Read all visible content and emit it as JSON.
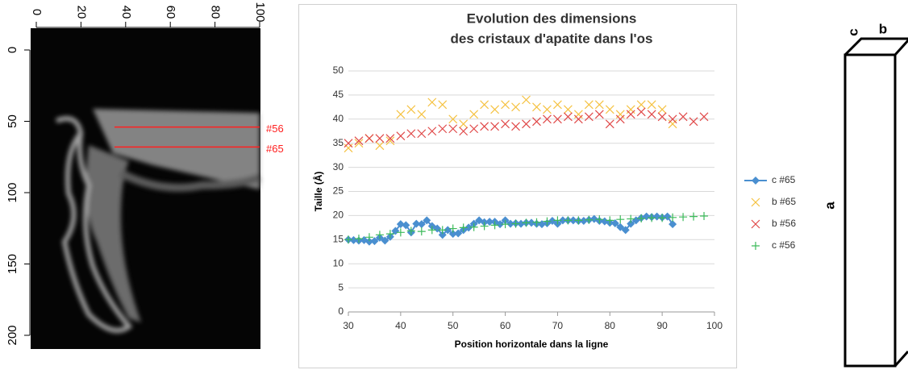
{
  "chart_data": [
    {
      "type": "image",
      "xlim": [
        0,
        100
      ],
      "xticks": [
        0,
        20,
        40,
        60,
        80,
        100
      ],
      "ylim": [
        0,
        200
      ],
      "yticks": [
        0,
        50,
        100,
        150,
        200
      ],
      "annotations": [
        {
          "text": "#56",
          "y": 54,
          "x": [
            35,
            100
          ],
          "color": "#ff2020"
        },
        {
          "text": "#65",
          "y": 68,
          "x": [
            35,
            100
          ],
          "color": "#ff2020"
        }
      ]
    },
    {
      "type": "scatter",
      "title": [
        "Evolution des dimensions",
        "des cristaux d'apatite dans l'os"
      ],
      "xlabel": "Position horizontale dans la ligne",
      "ylabel": "Taille (Å)",
      "xlim": [
        30,
        100
      ],
      "xticks": [
        30,
        40,
        50,
        60,
        70,
        80,
        90,
        100
      ],
      "ylim": [
        0,
        50
      ],
      "yticks": [
        0,
        5,
        10,
        15,
        20,
        25,
        30,
        35,
        40,
        45,
        50
      ],
      "grid": true,
      "legend": "right",
      "series": [
        {
          "name": "c #65",
          "color": "#4a8fd0",
          "marker": "diamond",
          "line": true,
          "x": [
            30,
            31,
            32,
            33,
            34,
            35,
            36,
            37,
            38,
            39,
            40,
            41,
            42,
            43,
            44,
            45,
            46,
            47,
            48,
            49,
            50,
            51,
            52,
            53,
            54,
            55,
            56,
            57,
            58,
            59,
            60,
            61,
            62,
            63,
            64,
            65,
            66,
            67,
            68,
            69,
            70,
            71,
            72,
            73,
            74,
            75,
            76,
            77,
            78,
            79,
            80,
            81,
            82,
            83,
            84,
            85,
            86,
            87,
            88,
            89,
            90,
            91,
            92
          ],
          "values": [
            15,
            14.9,
            14.8,
            14.9,
            14.6,
            14.7,
            15.4,
            14.8,
            15.6,
            16.8,
            18.2,
            18,
            16.5,
            18.3,
            18.2,
            19,
            17.8,
            17.3,
            16,
            17,
            16.2,
            16.3,
            17,
            17.5,
            18.3,
            19,
            18.6,
            18.7,
            18.7,
            18.2,
            19,
            18.3,
            18.4,
            18.3,
            18.5,
            18.5,
            18.3,
            18.2,
            18.4,
            18.9,
            18.3,
            19,
            19,
            19,
            18.9,
            18.9,
            19.1,
            19.3,
            18.9,
            18.8,
            18.5,
            18.4,
            17.6,
            17,
            18.3,
            19,
            19.5,
            19.8,
            19.7,
            19.8,
            19.6,
            19.8,
            18.2
          ]
        },
        {
          "name": "b #65",
          "color": "#f5c242",
          "marker": "x",
          "line": false,
          "x": [
            30,
            32,
            34,
            36,
            38,
            40,
            42,
            44,
            46,
            48,
            50,
            52,
            54,
            56,
            58,
            60,
            62,
            64,
            66,
            68,
            70,
            72,
            74,
            76,
            78,
            80,
            82,
            84,
            86,
            88,
            90,
            92
          ],
          "values": [
            34,
            35,
            36,
            34.5,
            35.5,
            41,
            42,
            41,
            43.5,
            43,
            40,
            39,
            41,
            43,
            42,
            43,
            42.5,
            44,
            42.5,
            42,
            43,
            42,
            41,
            43,
            43,
            42,
            41,
            42,
            43,
            43,
            42,
            39
          ]
        },
        {
          "name": "b #56",
          "color": "#e04848",
          "marker": "x",
          "line": false,
          "x": [
            30,
            32,
            34,
            36,
            38,
            40,
            42,
            44,
            46,
            48,
            50,
            52,
            54,
            56,
            58,
            60,
            62,
            64,
            66,
            68,
            70,
            72,
            74,
            76,
            78,
            80,
            82,
            84,
            86,
            88,
            90,
            92,
            94,
            96,
            98
          ],
          "values": [
            35,
            35.5,
            36,
            36,
            36,
            36.5,
            37,
            37,
            37.5,
            38,
            38,
            37.5,
            38,
            38.5,
            38.5,
            39,
            38.5,
            39,
            39.5,
            40,
            40,
            40.5,
            40,
            40.5,
            41,
            39,
            40,
            41,
            41.5,
            41,
            40.5,
            40,
            40.5,
            39.5,
            40.5
          ]
        },
        {
          "name": "c #56",
          "color": "#3cba5a",
          "marker": "plus",
          "line": false,
          "x": [
            30,
            32,
            34,
            36,
            38,
            40,
            42,
            44,
            46,
            48,
            50,
            52,
            54,
            56,
            58,
            60,
            62,
            64,
            66,
            68,
            70,
            72,
            74,
            76,
            78,
            80,
            82,
            84,
            86,
            88,
            90,
            92,
            94,
            96,
            98
          ],
          "values": [
            15,
            15.2,
            15.5,
            16,
            16.2,
            16.5,
            16.8,
            16.7,
            17,
            17,
            17.3,
            17.5,
            17.6,
            17.8,
            18,
            18.2,
            18.3,
            18.5,
            18.6,
            18.8,
            19,
            19,
            19,
            19.1,
            19.2,
            19,
            19.2,
            19.3,
            19.4,
            19.5,
            19.5,
            19.6,
            19.7,
            19.8,
            19.9
          ]
        }
      ]
    }
  ],
  "diagram": {
    "edges": {
      "a": "a",
      "b": "b",
      "c": "c"
    }
  }
}
